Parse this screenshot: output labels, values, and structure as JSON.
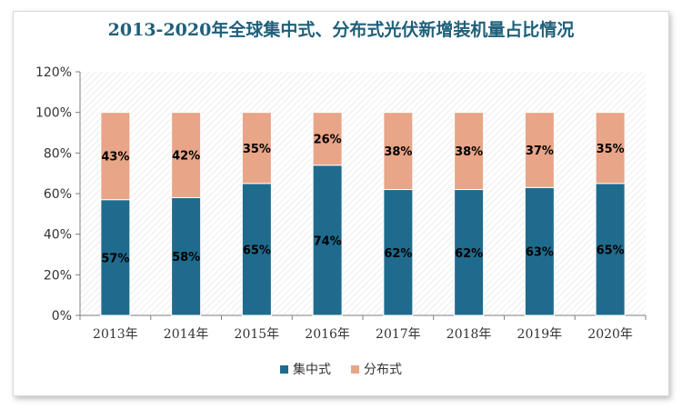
{
  "chart_data": {
    "type": "bar",
    "stacked": true,
    "title": "2013-2020年全球集中式、分布式光伏新增装机量占比情况",
    "categories": [
      "2013年",
      "2014年",
      "2015年",
      "2016年",
      "2017年",
      "2018年",
      "2019年",
      "2020年"
    ],
    "series": [
      {
        "name": "集中式",
        "values": [
          57,
          58,
          65,
          74,
          62,
          62,
          63,
          65
        ],
        "labels": [
          "57%",
          "58%",
          "65%",
          "74%",
          "62%",
          "62%",
          "63%",
          "65%"
        ],
        "color": "#1f6b8e"
      },
      {
        "name": "分布式",
        "values": [
          43,
          42,
          35,
          26,
          38,
          38,
          37,
          35
        ],
        "labels": [
          "43%",
          "42%",
          "35%",
          "26%",
          "38%",
          "38%",
          "37%",
          "35%"
        ],
        "color": "#e8a587"
      }
    ],
    "ylim": [
      0,
      120
    ],
    "yticks": [
      0,
      20,
      40,
      60,
      80,
      100,
      120
    ],
    "ytick_labels": [
      "0%",
      "20%",
      "40%",
      "60%",
      "80%",
      "100%",
      "120%"
    ],
    "grid": false,
    "legend": "bottom"
  }
}
